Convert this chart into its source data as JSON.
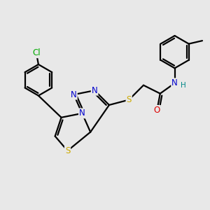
{
  "background_color": "#e8e8e8",
  "atom_colors": {
    "C": "#000000",
    "N": "#0000cc",
    "S": "#ccaa00",
    "O": "#dd0000",
    "Cl": "#00aa00",
    "H": "#008888"
  },
  "bond_color": "#000000",
  "bond_width": 1.6
}
